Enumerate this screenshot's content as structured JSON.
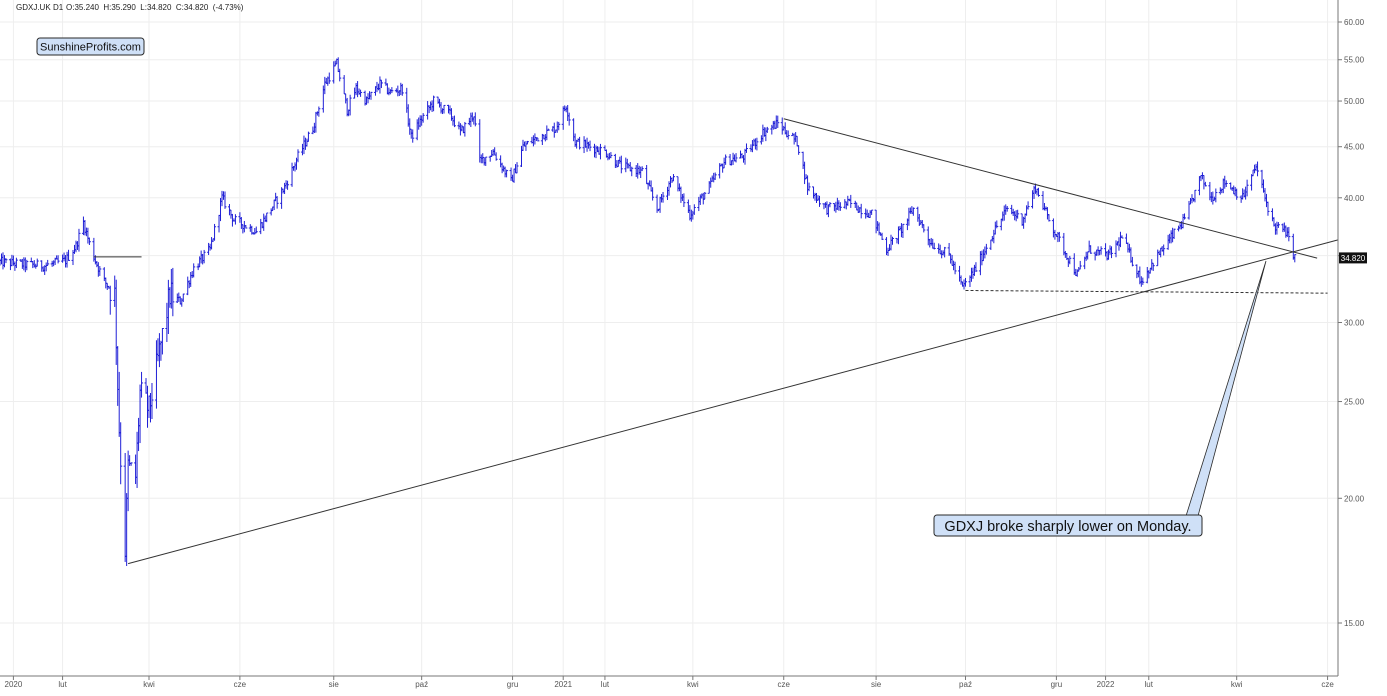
{
  "header": {
    "symbol": "GDXJ.UK",
    "interval": "D1",
    "ohlc": "O:35.240  H:35.290  L:34.820  C:34.820  (-4.73%)"
  },
  "watermark": {
    "label": "SunshineProfits.com"
  },
  "annotation": {
    "text": "GDXJ broke sharply lower on Monday."
  },
  "last_price": {
    "label": "34.820",
    "value": 34.82
  },
  "colors": {
    "candles": "#1f1fd6",
    "lines": "#333333",
    "grid": "#eeeeee",
    "axis": "#555555",
    "callout_fill": "#cfe0f7",
    "callout_border": "#2a2a2a",
    "price_tag_bg": "#111111",
    "price_tag_text": "#ffffff"
  },
  "chart_data": {
    "type": "ohlc",
    "title": "",
    "scale": "log",
    "ylim": [
      13.8,
      62.5
    ],
    "grid": true,
    "y_ticks": [
      {
        "value": 15,
        "label": "15.00"
      },
      {
        "value": 20,
        "label": "20.00"
      },
      {
        "value": 25,
        "label": "25.00"
      },
      {
        "value": 30,
        "label": "30.00"
      },
      {
        "value": 35,
        "label": "35.00"
      },
      {
        "value": 40,
        "label": "40.00"
      },
      {
        "value": 45,
        "label": "45.00"
      },
      {
        "value": 50,
        "label": "50.00"
      },
      {
        "value": 55,
        "label": "55.00"
      },
      {
        "value": 60,
        "label": "60.00"
      }
    ],
    "x_domain": [
      "2019-12-23",
      "2022-06-08"
    ],
    "x_ticks": [
      {
        "date": "2020-01-01",
        "label": "2020"
      },
      {
        "date": "2020-02-03",
        "label": "lut"
      },
      {
        "date": "2020-04-01",
        "label": "kwi"
      },
      {
        "date": "2020-06-01",
        "label": "cze"
      },
      {
        "date": "2020-08-03",
        "label": "sie"
      },
      {
        "date": "2020-10-01",
        "label": "paź"
      },
      {
        "date": "2020-12-01",
        "label": "gru"
      },
      {
        "date": "2021-01-04",
        "label": "2021"
      },
      {
        "date": "2021-02-01",
        "label": "lut"
      },
      {
        "date": "2021-04-01",
        "label": "kwi"
      },
      {
        "date": "2021-06-01",
        "label": "cze"
      },
      {
        "date": "2021-08-02",
        "label": "sie"
      },
      {
        "date": "2021-10-01",
        "label": "paź"
      },
      {
        "date": "2021-12-01",
        "label": "gru"
      },
      {
        "date": "2022-01-03",
        "label": "2022"
      },
      {
        "date": "2022-02-01",
        "label": "lut"
      },
      {
        "date": "2022-04-01",
        "label": "kwi"
      },
      {
        "date": "2022-06-01",
        "label": "cze"
      }
    ],
    "price_path": [
      [
        "2019-12-23",
        34.5
      ],
      [
        "2020-01-08",
        34.3
      ],
      [
        "2020-01-22",
        34.2
      ],
      [
        "2020-02-05",
        34.6
      ],
      [
        "2020-02-12",
        35.8
      ],
      [
        "2020-02-17",
        37.8
      ],
      [
        "2020-02-21",
        36.0
      ],
      [
        "2020-02-25",
        34.6
      ],
      [
        "2020-03-02",
        33.0
      ],
      [
        "2020-03-09",
        32.0
      ],
      [
        "2020-03-12",
        23.5
      ],
      [
        "2020-03-16",
        17.8
      ],
      [
        "2020-03-18",
        21.5
      ],
      [
        "2020-03-23",
        21.0
      ],
      [
        "2020-03-26",
        25.5
      ],
      [
        "2020-04-01",
        24.5
      ],
      [
        "2020-04-08",
        28.0
      ],
      [
        "2020-04-15",
        32.0
      ],
      [
        "2020-04-22",
        31.5
      ],
      [
        "2020-05-01",
        34.0
      ],
      [
        "2020-05-12",
        35.5
      ],
      [
        "2020-05-20",
        40.0
      ],
      [
        "2020-05-28",
        38.0
      ],
      [
        "2020-06-05",
        37.5
      ],
      [
        "2020-06-12",
        37.0
      ],
      [
        "2020-06-22",
        39.0
      ],
      [
        "2020-07-01",
        41.0
      ],
      [
        "2020-07-10",
        44.0
      ],
      [
        "2020-07-20",
        47.0
      ],
      [
        "2020-07-28",
        52.0
      ],
      [
        "2020-08-05",
        54.5
      ],
      [
        "2020-08-12",
        49.0
      ],
      [
        "2020-08-18",
        51.5
      ],
      [
        "2020-08-25",
        50.0
      ],
      [
        "2020-09-03",
        52.0
      ],
      [
        "2020-09-10",
        51.0
      ],
      [
        "2020-09-18",
        51.5
      ],
      [
        "2020-09-24",
        46.0
      ],
      [
        "2020-10-01",
        48.0
      ],
      [
        "2020-10-09",
        50.0
      ],
      [
        "2020-10-20",
        48.5
      ],
      [
        "2020-10-27",
        46.5
      ],
      [
        "2020-11-05",
        48.5
      ],
      [
        "2020-11-09",
        43.5
      ],
      [
        "2020-11-18",
        44.5
      ],
      [
        "2020-11-30",
        41.5
      ],
      [
        "2020-12-08",
        45.0
      ],
      [
        "2020-12-18",
        46.0
      ],
      [
        "2020-12-30",
        47.0
      ],
      [
        "2021-01-06",
        49.5
      ],
      [
        "2021-01-12",
        45.5
      ],
      [
        "2021-01-22",
        45.0
      ],
      [
        "2021-02-01",
        44.5
      ],
      [
        "2021-02-12",
        43.0
      ],
      [
        "2021-02-26",
        42.5
      ],
      [
        "2021-03-08",
        39.0
      ],
      [
        "2021-03-18",
        42.0
      ],
      [
        "2021-03-30",
        38.5
      ],
      [
        "2021-04-12",
        41.0
      ],
      [
        "2021-04-22",
        43.5
      ],
      [
        "2021-05-05",
        44.0
      ],
      [
        "2021-05-18",
        46.5
      ],
      [
        "2021-05-28",
        47.5
      ],
      [
        "2021-06-03",
        46.5
      ],
      [
        "2021-06-10",
        45.5
      ],
      [
        "2021-06-17",
        41.0
      ],
      [
        "2021-06-30",
        39.0
      ],
      [
        "2021-07-15",
        39.5
      ],
      [
        "2021-07-30",
        38.5
      ],
      [
        "2021-08-09",
        35.5
      ],
      [
        "2021-08-18",
        37.0
      ],
      [
        "2021-08-27",
        39.0
      ],
      [
        "2021-09-08",
        36.0
      ],
      [
        "2021-09-20",
        35.0
      ],
      [
        "2021-09-29",
        32.5
      ],
      [
        "2021-10-08",
        34.0
      ],
      [
        "2021-10-20",
        37.0
      ],
      [
        "2021-10-29",
        39.0
      ],
      [
        "2021-11-08",
        38.0
      ],
      [
        "2021-11-17",
        41.0
      ],
      [
        "2021-11-26",
        38.0
      ],
      [
        "2021-12-06",
        35.5
      ],
      [
        "2021-12-15",
        33.5
      ],
      [
        "2021-12-23",
        35.5
      ],
      [
        "2022-01-05",
        35.0
      ],
      [
        "2022-01-14",
        36.5
      ],
      [
        "2022-01-27",
        33.0
      ],
      [
        "2022-02-04",
        34.5
      ],
      [
        "2022-02-16",
        36.5
      ],
      [
        "2022-02-25",
        38.0
      ],
      [
        "2022-03-08",
        42.0
      ],
      [
        "2022-03-15",
        40.0
      ],
      [
        "2022-03-24",
        41.5
      ],
      [
        "2022-04-05",
        40.0
      ],
      [
        "2022-04-14",
        43.0
      ],
      [
        "2022-04-20",
        40.0
      ],
      [
        "2022-04-26",
        37.5
      ],
      [
        "2022-05-04",
        37.0
      ],
      [
        "2022-05-09",
        35.2
      ],
      [
        "2022-05-10",
        34.8
      ]
    ],
    "trendlines": [
      {
        "name": "rising-support",
        "from": [
          "2020-03-18",
          17.2
        ],
        "to": [
          "2022-06-08",
          36.3
        ],
        "style": "solid"
      },
      {
        "name": "declining-resistance",
        "from": [
          "2021-06-01",
          48.0
        ],
        "to": [
          "2022-05-25",
          34.8
        ],
        "style": "solid"
      },
      {
        "name": "horizontal-support",
        "from": [
          "2021-10-01",
          32.3
        ],
        "to": [
          "2022-06-01",
          32.1
        ],
        "style": "dashed"
      },
      {
        "name": "feb-2020-level",
        "from": [
          "2020-02-24",
          34.9
        ],
        "to": [
          "2020-03-27",
          34.9
        ],
        "style": "solid"
      }
    ]
  }
}
